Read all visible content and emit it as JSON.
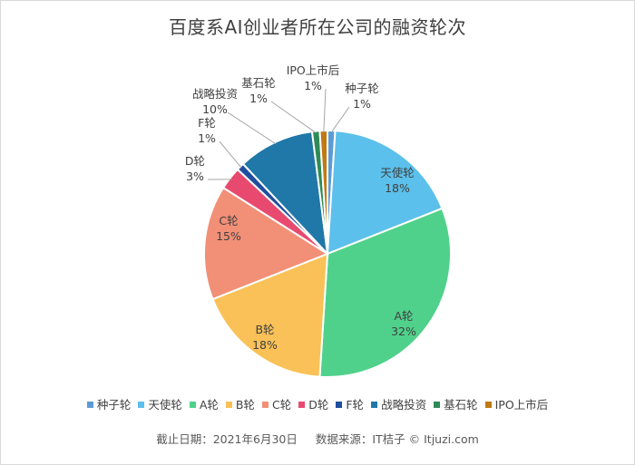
{
  "chart_data": {
    "type": "pie",
    "title": "百度系AI创业者所在公司的融资轮次",
    "categories": [
      "种子轮",
      "天使轮",
      "A轮",
      "B轮",
      "C轮",
      "D轮",
      "F轮",
      "战略投资",
      "基石轮",
      "IPO上市后"
    ],
    "values": [
      1,
      18,
      32,
      18,
      15,
      3,
      1,
      10,
      1,
      1
    ],
    "percent_labels": [
      "1%",
      "18%",
      "32%",
      "18%",
      "15%",
      "3%",
      "1%",
      "10%",
      "1%",
      "1%"
    ],
    "colors": [
      "#5B9BD5",
      "#5BC0EB",
      "#4FD18B",
      "#F9C157",
      "#F28F77",
      "#E84A6F",
      "#1F4E9E",
      "#1F78A8",
      "#2E8B57",
      "#C07A12"
    ],
    "legend_position": "bottom"
  },
  "footnote": {
    "date": "截止日期：2021年6月30日",
    "source": "数据来源：IT桔子 © Itjuzi.com"
  }
}
